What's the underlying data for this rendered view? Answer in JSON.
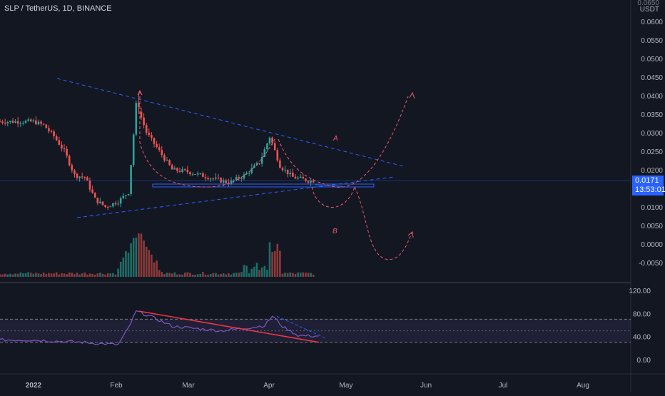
{
  "header": {
    "title": "SLP / TetherUS, 1D, BINANCE"
  },
  "price_axis": {
    "unit": "USDT",
    "top_label": "0.0650",
    "ticks": [
      "0.0600",
      "0.0550",
      "0.0500",
      "0.0450",
      "0.0400",
      "0.0350",
      "0.0300",
      "0.0250",
      "0.0200",
      "0.0150",
      "0.0100",
      "0.0050",
      "0.0000",
      "-0.0050"
    ],
    "last_price": "0.0171",
    "countdown": "13:53:01"
  },
  "rsi_axis": {
    "ticks": [
      "120.00",
      "80.00",
      "40.00",
      "0.00"
    ]
  },
  "time_axis": {
    "labels": [
      "2022",
      "Feb",
      "Mar",
      "Apr",
      "May",
      "Jun",
      "Jul",
      "Aug"
    ]
  },
  "annotations": {
    "label_a": "A",
    "label_b": "B"
  },
  "colors": {
    "background": "#131722",
    "up": "#26a69a",
    "down": "#ef5350",
    "trendline": "#2962ff",
    "projection": "#f05a6e",
    "rsi": "#7e57c2",
    "grid": "#2a2e39"
  },
  "chart_data": {
    "type": "candlestick",
    "symbol": "SLP / TetherUS",
    "interval": "1D",
    "exchange": "BINANCE",
    "ylim": [
      -0.0075,
      0.066
    ],
    "x_labels": [
      "2022",
      "Feb",
      "Mar",
      "Apr",
      "May",
      "Jun",
      "Jul",
      "Aug"
    ],
    "price_path": [
      [
        "2022-01-01",
        0.033
      ],
      [
        "2022-01-05",
        0.032
      ],
      [
        "2022-01-09",
        0.029
      ],
      [
        "2022-01-13",
        0.025
      ],
      [
        "2022-01-17",
        0.0185
      ],
      [
        "2022-01-21",
        0.018
      ],
      [
        "2022-01-25",
        0.012
      ],
      [
        "2022-01-29",
        0.01
      ],
      [
        "2022-02-03",
        0.0115
      ],
      [
        "2022-02-07",
        0.014
      ],
      [
        "2022-02-10",
        0.038
      ],
      [
        "2022-02-14",
        0.03
      ],
      [
        "2022-02-18",
        0.026
      ],
      [
        "2022-02-24",
        0.02
      ],
      [
        "2022-03-02",
        0.0195
      ],
      [
        "2022-03-10",
        0.018
      ],
      [
        "2022-03-18",
        0.0165
      ],
      [
        "2022-03-24",
        0.0185
      ],
      [
        "2022-03-30",
        0.022
      ],
      [
        "2022-04-03",
        0.029
      ],
      [
        "2022-04-07",
        0.021
      ],
      [
        "2022-04-12",
        0.018
      ],
      [
        "2022-04-18",
        0.0171
      ]
    ],
    "rsi_ylim": [
      -10,
      135
    ],
    "rsi_levels": [
      30,
      70
    ],
    "rsi_path": [
      [
        "2022-01-01",
        34
      ],
      [
        "2022-01-10",
        32
      ],
      [
        "2022-01-20",
        30
      ],
      [
        "2022-01-26",
        28
      ],
      [
        "2022-02-03",
        26
      ],
      [
        "2022-02-07",
        55
      ],
      [
        "2022-02-10",
        84
      ],
      [
        "2022-02-16",
        74
      ],
      [
        "2022-02-24",
        58
      ],
      [
        "2022-03-05",
        54
      ],
      [
        "2022-03-15",
        50
      ],
      [
        "2022-03-25",
        55
      ],
      [
        "2022-04-01",
        59
      ],
      [
        "2022-04-04",
        76
      ],
      [
        "2022-04-08",
        57
      ],
      [
        "2022-04-14",
        42
      ],
      [
        "2022-04-18",
        41
      ]
    ],
    "annotations": [
      "A",
      "B"
    ],
    "last_price": 0.0171
  }
}
